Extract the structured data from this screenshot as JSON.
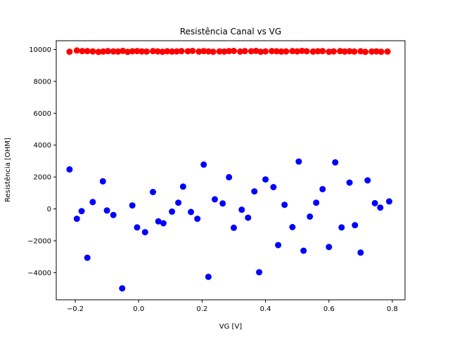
{
  "chart_data": {
    "type": "scatter",
    "title": "Resistência Canal vs VG",
    "xlabel": "VG [V]",
    "ylabel": "Resistência [OHM]",
    "xlim": [
      -0.26,
      0.84
    ],
    "ylim": [
      -5700,
      10550
    ],
    "xticks": [
      -0.2,
      0.0,
      0.2,
      0.4,
      0.6,
      0.8
    ],
    "xtick_labels": [
      "−0.2",
      "0.0",
      "0.2",
      "0.4",
      "0.6",
      "0.8"
    ],
    "yticks": [
      -4000,
      -2000,
      0,
      2000,
      4000,
      6000,
      8000,
      10000
    ],
    "ytick_labels": [
      "−4000",
      "−2000",
      "0",
      "2000",
      "4000",
      "6000",
      "8000",
      "10000"
    ],
    "grid": false,
    "series": [
      {
        "color": "#ff0000",
        "x": [
          -0.218,
          -0.195,
          -0.178,
          -0.162,
          -0.145,
          -0.127,
          -0.112,
          -0.097,
          -0.08,
          -0.065,
          -0.05,
          -0.035,
          -0.02,
          -0.005,
          0.01,
          0.025,
          0.045,
          0.06,
          0.075,
          0.09,
          0.105,
          0.12,
          0.135,
          0.155,
          0.17,
          0.19,
          0.205,
          0.22,
          0.235,
          0.255,
          0.27,
          0.285,
          0.3,
          0.32,
          0.335,
          0.355,
          0.37,
          0.385,
          0.4,
          0.42,
          0.435,
          0.45,
          0.465,
          0.485,
          0.5,
          0.515,
          0.53,
          0.55,
          0.565,
          0.58,
          0.6,
          0.615,
          0.635,
          0.65,
          0.665,
          0.68,
          0.7,
          0.715,
          0.735,
          0.75,
          0.765,
          0.785
        ],
        "y": [
          9860,
          9940,
          9900,
          9900,
          9880,
          9850,
          9870,
          9900,
          9880,
          9870,
          9910,
          9850,
          9890,
          9900,
          9880,
          9870,
          9900,
          9880,
          9860,
          9890,
          9870,
          9880,
          9900,
          9890,
          9910,
          9870,
          9900,
          9880,
          9860,
          9880,
          9870,
          9900,
          9910,
          9870,
          9900,
          9890,
          9910,
          9860,
          9880,
          9900,
          9890,
          9870,
          9880,
          9900,
          9880,
          9910,
          9890,
          9870,
          9890,
          9900,
          9860,
          9880,
          9900,
          9870,
          9890,
          9870,
          9890,
          9850,
          9870,
          9880,
          9860,
          9870
        ]
      },
      {
        "color": "#0000ff",
        "x": [
          -0.218,
          -0.195,
          -0.18,
          -0.162,
          -0.145,
          -0.113,
          -0.1,
          -0.08,
          -0.052,
          -0.02,
          -0.005,
          0.02,
          0.045,
          0.062,
          0.078,
          0.105,
          0.125,
          0.14,
          0.165,
          0.185,
          0.205,
          0.22,
          0.24,
          0.265,
          0.285,
          0.3,
          0.325,
          0.345,
          0.365,
          0.38,
          0.4,
          0.425,
          0.44,
          0.46,
          0.485,
          0.505,
          0.52,
          0.54,
          0.56,
          0.58,
          0.6,
          0.62,
          0.64,
          0.665,
          0.682,
          0.7,
          0.722,
          0.745,
          0.762,
          0.79
        ],
        "y": [
          2480,
          -620,
          -140,
          -3060,
          430,
          1730,
          -100,
          -380,
          -4980,
          220,
          -1160,
          -1460,
          1060,
          -780,
          -900,
          -170,
          390,
          1400,
          -190,
          -620,
          2780,
          -4260,
          600,
          340,
          1990,
          -1180,
          -50,
          -550,
          1100,
          -3970,
          1850,
          1370,
          -2270,
          260,
          -1140,
          2970,
          -2620,
          -480,
          390,
          1240,
          -2390,
          2920,
          -1160,
          1650,
          -1020,
          -2740,
          1790,
          360,
          80,
          470
        ]
      }
    ]
  }
}
